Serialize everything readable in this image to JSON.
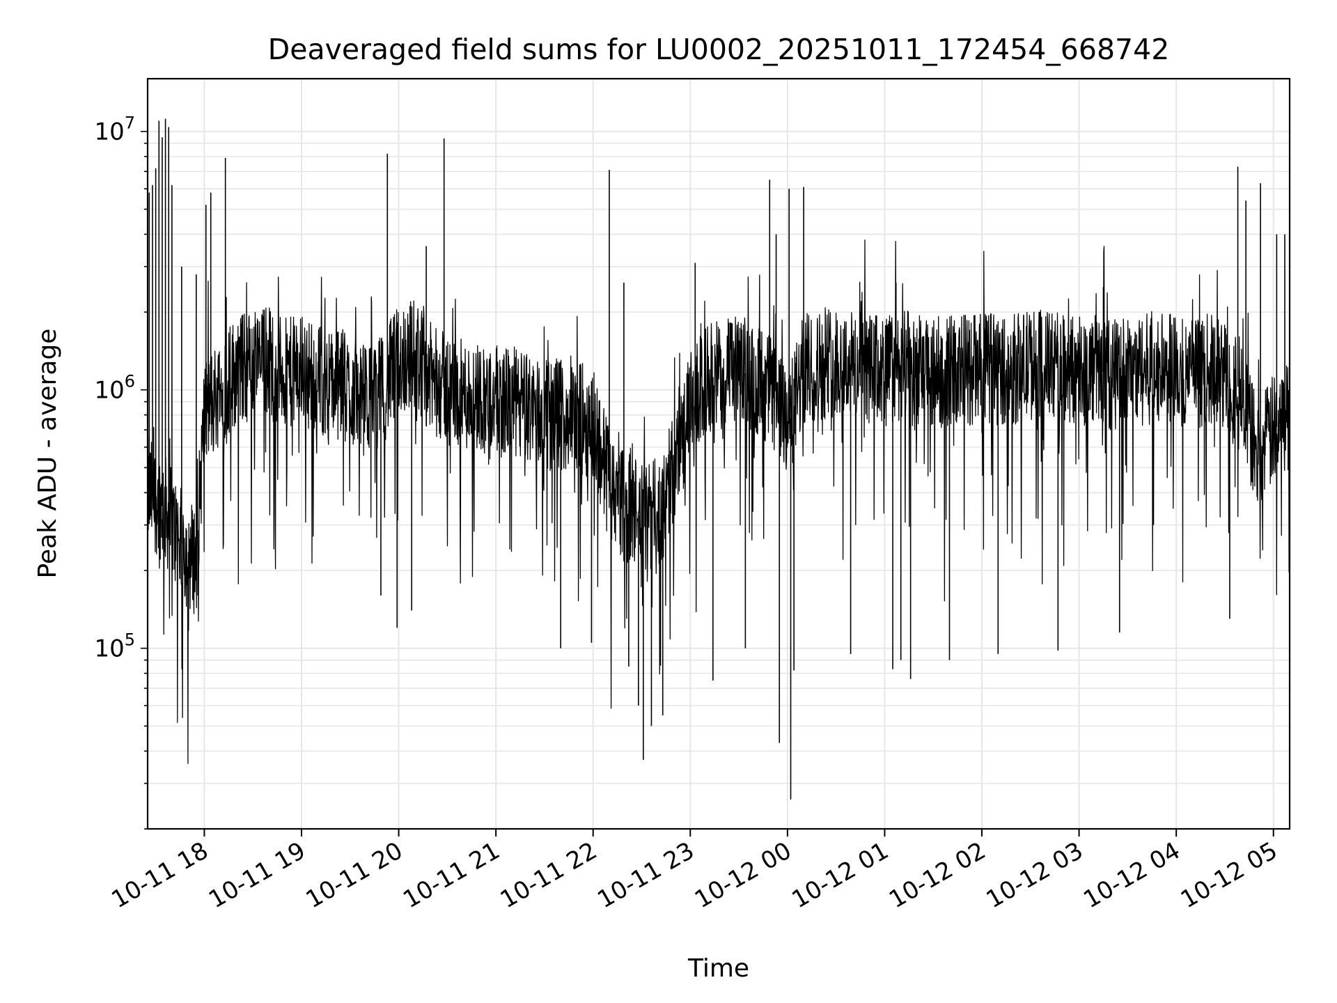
{
  "chart_data": {
    "type": "line",
    "title": "Deaveraged field sums for LU0002_20251011_172454_668742",
    "xlabel": "Time",
    "ylabel": "Peak ADU - average",
    "yscale": "log",
    "ylim": [
      20000,
      16000000
    ],
    "xlim": [
      "2025-10-11 17:25",
      "2025-10-12 05:10"
    ],
    "grid": true,
    "line_color": "#000000",
    "grid_color": "#e6e6e6",
    "x_ticks": [
      {
        "t": "2025-10-11 18:00",
        "label": "10-11 18"
      },
      {
        "t": "2025-10-11 19:00",
        "label": "10-11 19"
      },
      {
        "t": "2025-10-11 20:00",
        "label": "10-11 20"
      },
      {
        "t": "2025-10-11 21:00",
        "label": "10-11 21"
      },
      {
        "t": "2025-10-11 22:00",
        "label": "10-11 22"
      },
      {
        "t": "2025-10-11 23:00",
        "label": "10-11 23"
      },
      {
        "t": "2025-10-12 00:00",
        "label": "10-12 00"
      },
      {
        "t": "2025-10-12 01:00",
        "label": "10-12 01"
      },
      {
        "t": "2025-10-12 02:00",
        "label": "10-12 02"
      },
      {
        "t": "2025-10-12 03:00",
        "label": "10-12 03"
      },
      {
        "t": "2025-10-12 04:00",
        "label": "10-12 04"
      },
      {
        "t": "2025-10-12 05:00",
        "label": "10-12 05"
      }
    ],
    "y_ticks": [
      {
        "value": 100000,
        "base": "10",
        "exp": "5"
      },
      {
        "value": 1000000,
        "base": "10",
        "exp": "6"
      },
      {
        "value": 10000000,
        "base": "10",
        "exp": "7"
      }
    ],
    "series": [
      {
        "x": [
          "2025-10-11 17:25",
          "2025-10-11 17:30",
          "2025-10-11 17:35",
          "2025-10-11 17:40",
          "2025-10-11 17:45",
          "2025-10-11 17:50",
          "2025-10-11 17:55",
          "2025-10-11 18:00",
          "2025-10-11 18:10",
          "2025-10-11 18:20",
          "2025-10-11 18:30",
          "2025-10-11 18:40",
          "2025-10-11 18:50",
          "2025-10-11 19:00",
          "2025-10-11 19:10",
          "2025-10-11 19:20",
          "2025-10-11 19:30",
          "2025-10-11 19:40",
          "2025-10-11 19:50",
          "2025-10-11 20:00",
          "2025-10-11 20:10",
          "2025-10-11 20:20",
          "2025-10-11 20:30",
          "2025-10-11 20:40",
          "2025-10-11 20:50",
          "2025-10-11 21:00",
          "2025-10-11 21:10",
          "2025-10-11 21:20",
          "2025-10-11 21:30",
          "2025-10-11 21:40",
          "2025-10-11 21:50",
          "2025-10-11 22:00",
          "2025-10-11 22:10",
          "2025-10-11 22:20",
          "2025-10-11 22:30",
          "2025-10-11 22:40",
          "2025-10-11 22:50",
          "2025-10-11 23:00",
          "2025-10-11 23:10",
          "2025-10-11 23:20",
          "2025-10-11 23:30",
          "2025-10-11 23:40",
          "2025-10-11 23:50",
          "2025-10-12 00:00",
          "2025-10-12 00:10",
          "2025-10-12 00:20",
          "2025-10-12 00:30",
          "2025-10-12 00:40",
          "2025-10-12 00:50",
          "2025-10-12 01:00",
          "2025-10-12 01:10",
          "2025-10-12 01:20",
          "2025-10-12 01:30",
          "2025-10-12 01:40",
          "2025-10-12 01:50",
          "2025-10-12 02:00",
          "2025-10-12 02:10",
          "2025-10-12 02:20",
          "2025-10-12 02:30",
          "2025-10-12 02:40",
          "2025-10-12 02:50",
          "2025-10-12 03:00",
          "2025-10-12 03:10",
          "2025-10-12 03:20",
          "2025-10-12 03:30",
          "2025-10-12 03:40",
          "2025-10-12 03:50",
          "2025-10-12 04:00",
          "2025-10-12 04:10",
          "2025-10-12 04:20",
          "2025-10-12 04:30",
          "2025-10-12 04:40",
          "2025-10-12 04:50",
          "2025-10-12 05:00",
          "2025-10-12 05:10"
        ],
        "y": [
          400000,
          380000,
          350000,
          300000,
          260000,
          230000,
          220000,
          800000,
          1000000,
          1200000,
          1250000,
          1300000,
          1150000,
          1200000,
          1100000,
          1050000,
          1000000,
          900000,
          1000000,
          1300000,
          1400000,
          1100000,
          1000000,
          950000,
          950000,
          900000,
          900000,
          850000,
          800000,
          800000,
          780000,
          750000,
          450000,
          350000,
          320000,
          330000,
          500000,
          850000,
          1100000,
          1150000,
          1200000,
          1100000,
          1000000,
          700000,
          1200000,
          1250000,
          1300000,
          1250000,
          1200000,
          1200000,
          1250000,
          1200000,
          1150000,
          1200000,
          1200000,
          1200000,
          1200000,
          1200000,
          1250000,
          1250000,
          1200000,
          1200000,
          1200000,
          1150000,
          1200000,
          1200000,
          1200000,
          1200000,
          1150000,
          1200000,
          1150000,
          1000000,
          550000,
          700000,
          800000
        ]
      }
    ],
    "spikes": [
      {
        "t": "2025-10-11 17:26",
        "y": 5800000
      },
      {
        "t": "2025-10-11 17:28",
        "y": 6200000
      },
      {
        "t": "2025-10-11 17:30",
        "y": 7200000
      },
      {
        "t": "2025-10-11 17:32",
        "y": 11000000
      },
      {
        "t": "2025-10-11 17:34",
        "y": 9500000
      },
      {
        "t": "2025-10-11 17:36",
        "y": 11200000
      },
      {
        "t": "2025-10-11 17:38",
        "y": 10400000
      },
      {
        "t": "2025-10-11 17:40",
        "y": 6200000
      },
      {
        "t": "2025-10-11 17:46",
        "y": 3000000
      },
      {
        "t": "2025-10-11 17:55",
        "y": 2800000
      },
      {
        "t": "2025-10-11 18:01",
        "y": 5200000
      },
      {
        "t": "2025-10-11 18:04",
        "y": 5800000
      },
      {
        "t": "2025-10-11 18:13",
        "y": 7900000
      },
      {
        "t": "2025-10-11 19:53",
        "y": 8200000
      },
      {
        "t": "2025-10-11 20:17",
        "y": 3600000
      },
      {
        "t": "2025-10-11 20:28",
        "y": 9400000
      },
      {
        "t": "2025-10-11 22:10",
        "y": 7100000
      },
      {
        "t": "2025-10-11 22:19",
        "y": 2600000
      },
      {
        "t": "2025-10-11 23:03",
        "y": 3100000
      },
      {
        "t": "2025-10-11 23:49",
        "y": 6500000
      },
      {
        "t": "2025-10-11 23:53",
        "y": 4000000
      },
      {
        "t": "2025-10-12 00:01",
        "y": 6000000
      },
      {
        "t": "2025-10-12 00:10",
        "y": 6100000
      },
      {
        "t": "2025-10-12 01:07",
        "y": 2600000
      },
      {
        "t": "2025-10-12 03:15",
        "y": 2500000
      },
      {
        "t": "2025-10-12 04:38",
        "y": 7300000
      },
      {
        "t": "2025-10-12 04:43",
        "y": 5400000
      },
      {
        "t": "2025-10-12 04:52",
        "y": 6300000
      },
      {
        "t": "2025-10-12 05:02",
        "y": 4000000
      },
      {
        "t": "2025-10-12 05:07",
        "y": 4000000
      }
    ],
    "dips": [
      {
        "t": "2025-10-11 17:56",
        "y": 160000
      },
      {
        "t": "2025-10-11 19:49",
        "y": 160000
      },
      {
        "t": "2025-10-11 19:59",
        "y": 120000
      },
      {
        "t": "2025-10-11 20:08",
        "y": 140000
      },
      {
        "t": "2025-10-11 21:40",
        "y": 100000
      },
      {
        "t": "2025-10-11 21:59",
        "y": 105000
      },
      {
        "t": "2025-10-11 22:22",
        "y": 85000
      },
      {
        "t": "2025-10-11 22:28",
        "y": 60000
      },
      {
        "t": "2025-10-11 22:31",
        "y": 37000
      },
      {
        "t": "2025-10-11 22:36",
        "y": 50000
      },
      {
        "t": "2025-10-11 22:43",
        "y": 55000
      },
      {
        "t": "2025-10-11 23:14",
        "y": 75000
      },
      {
        "t": "2025-10-11 23:34",
        "y": 100000
      },
      {
        "t": "2025-10-11 23:55",
        "y": 43000
      },
      {
        "t": "2025-10-12 00:02",
        "y": 26000
      },
      {
        "t": "2025-10-12 00:04",
        "y": 82000
      },
      {
        "t": "2025-10-12 00:39",
        "y": 95000
      },
      {
        "t": "2025-10-12 01:05",
        "y": 83000
      },
      {
        "t": "2025-10-12 01:10",
        "y": 90000
      },
      {
        "t": "2025-10-12 01:16",
        "y": 76000
      },
      {
        "t": "2025-10-12 01:40",
        "y": 90000
      },
      {
        "t": "2025-10-12 02:10",
        "y": 95000
      },
      {
        "t": "2025-10-12 02:47",
        "y": 98000
      },
      {
        "t": "2025-10-12 03:25",
        "y": 115000
      },
      {
        "t": "2025-10-12 04:33",
        "y": 130000
      }
    ]
  }
}
